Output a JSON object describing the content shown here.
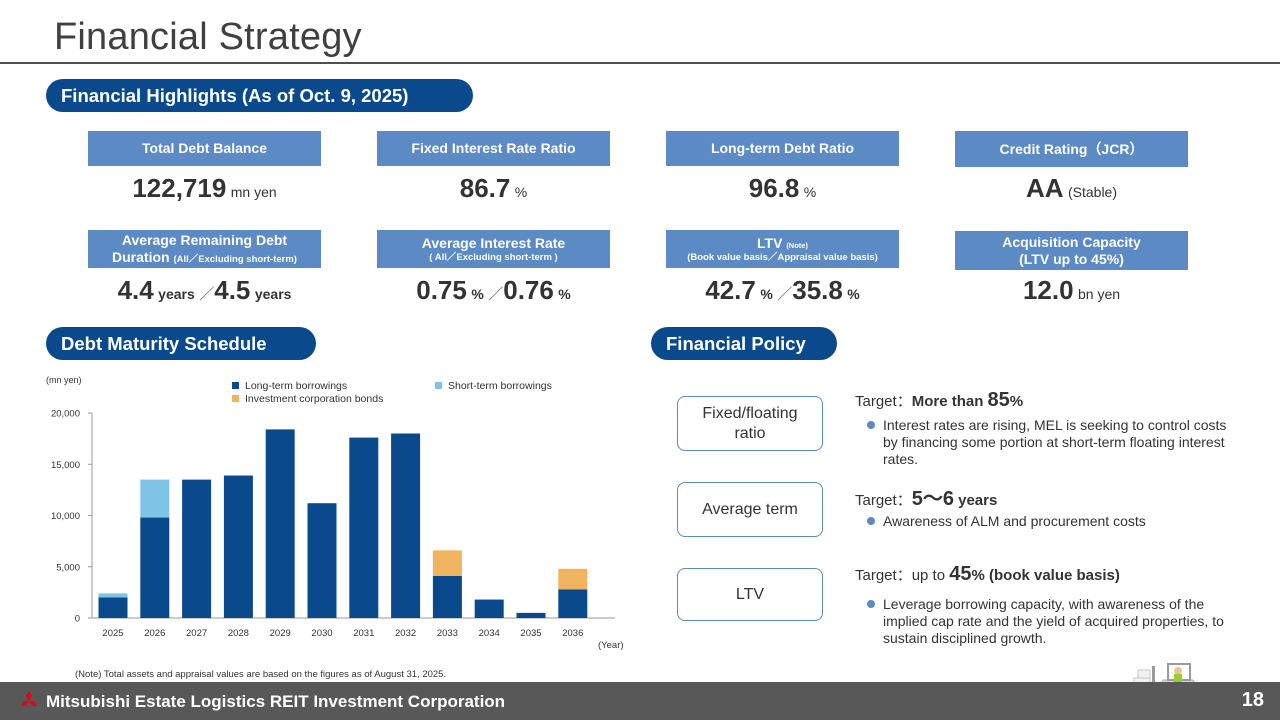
{
  "title": "Financial Strategy",
  "highlights": {
    "label": "Financial Highlights (As of Oct. 9, 2025)",
    "kpis": [
      {
        "header": "Total Debt Balance",
        "value": "122,719",
        "unit": "mn yen"
      },
      {
        "header": "Fixed Interest Rate Ratio",
        "value": "86.7",
        "unit": "%"
      },
      {
        "header": "Long-term Debt Ratio",
        "value": "96.8",
        "unit": "%"
      },
      {
        "header": "Credit Rating（JCR）",
        "value": "AA",
        "unit": "(Stable)"
      },
      {
        "header": "Average Remaining Debt",
        "header2": "Duration",
        "sub": "(All／Excluding short-term)",
        "value1": "4.4",
        "unit1": "years",
        "sep": "／",
        "value2": "4.5",
        "unit2": "years"
      },
      {
        "header": "Average Interest Rate",
        "sub": "( All／Excluding short-term )",
        "value1": "0.75",
        "unit1": "%",
        "sep": "／",
        "value2": "0.76",
        "unit2": "%"
      },
      {
        "header": "LTV",
        "note": "(Note)",
        "sub": "(Book value basis／Appraisal value basis)",
        "value1": "42.7",
        "unit1": "%",
        "sep": "／",
        "value2": "35.8",
        "unit2": "%"
      },
      {
        "header": "Acquisition Capacity",
        "header2": "(LTV up to 45%)",
        "value": "12.0",
        "unit": "bn yen"
      }
    ]
  },
  "maturity": {
    "label": "Debt Maturity Schedule",
    "note": "(Note) Total assets and appraisal values are based on the figures as of August 31, 2025."
  },
  "chart_data": {
    "type": "bar",
    "stacked": true,
    "ylabel": "(mn yen)",
    "xlabel": "(Year)",
    "ylim": [
      0,
      20000
    ],
    "yticks": [
      "0",
      "5,000",
      "10,000",
      "15,000",
      "20,000"
    ],
    "ytick_values": [
      0,
      5000,
      10000,
      15000,
      20000
    ],
    "categories": [
      "2025",
      "2026",
      "2027",
      "2028",
      "2029",
      "2030",
      "2031",
      "2032",
      "2033",
      "2034",
      "2035",
      "2036"
    ],
    "series": [
      {
        "name": "Long-term borrowings",
        "color": "#0a4a8c",
        "values": [
          2000,
          9800,
          13500,
          13900,
          18400,
          11200,
          17600,
          18000,
          4100,
          1800,
          500,
          2800
        ]
      },
      {
        "name": "Short-term borrowings",
        "color": "#7ec4e6",
        "values": [
          400,
          3700,
          0,
          0,
          0,
          0,
          0,
          0,
          0,
          0,
          0,
          0
        ]
      },
      {
        "name": "Investment corporation bonds",
        "color": "#f0b460",
        "values": [
          0,
          0,
          0,
          0,
          0,
          0,
          0,
          0,
          2500,
          0,
          0,
          2000
        ]
      }
    ],
    "legend_position": "top"
  },
  "policy": {
    "label": "Financial Policy",
    "items": [
      {
        "box": "Fixed/floating ratio",
        "target_prefix": "Target：",
        "target_text": "More than ",
        "target_num": "85",
        "target_unit": "%",
        "target_suffix": "",
        "bullet": "Interest rates are rising, MEL is seeking to control costs by financing some portion at short-term floating interest rates."
      },
      {
        "box": "Average term",
        "target_prefix": "Target：",
        "target_text": "",
        "target_num": "5〜6",
        "target_unit": " years",
        "target_suffix": "",
        "bullet": "Awareness of ALM and procurement costs"
      },
      {
        "box": "LTV",
        "target_prefix": "Target：",
        "target_text": "up to ",
        "target_num": "45",
        "target_unit": "%",
        "target_suffix": " (book value basis)",
        "bullet": "Leverage borrowing capacity, with awareness of the implied cap rate and the yield of acquired properties, to sustain disciplined growth."
      }
    ]
  },
  "footer": {
    "company": "Mitsubishi Estate Logistics REIT Investment Corporation",
    "page": "18"
  },
  "colors": {
    "navy": "#0a4a8c",
    "header_blue": "#5b8ac4",
    "footer_gray": "#585858",
    "logo_red": "#e60012"
  },
  "icons": [
    "mitsubishi-logo",
    "forklift-icon"
  ]
}
